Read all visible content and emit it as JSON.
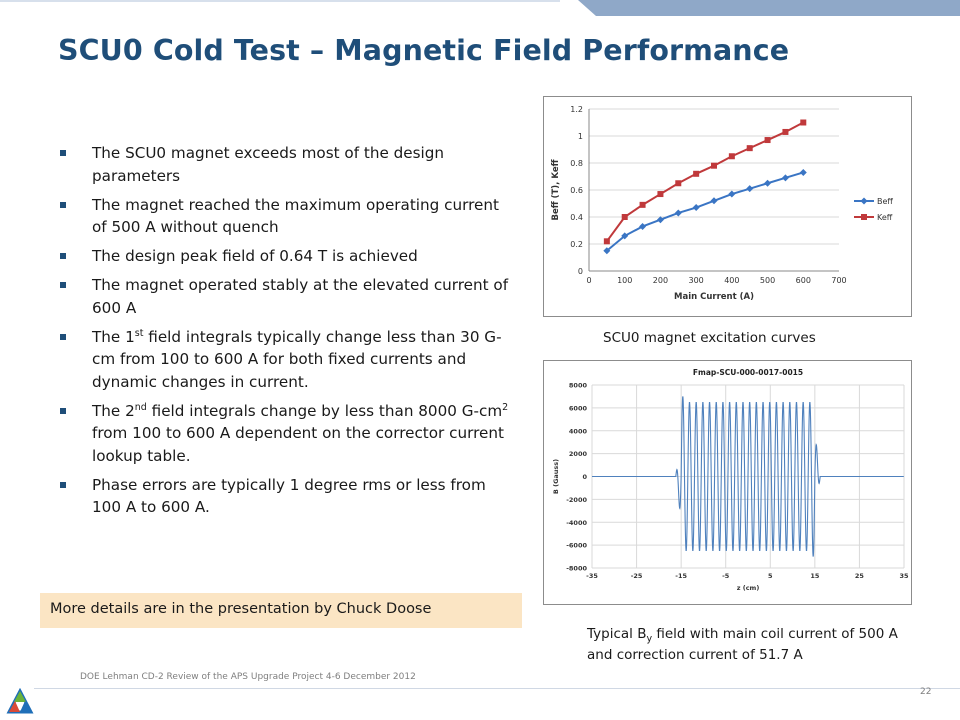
{
  "slide": {
    "title": "SCU0 Cold Test – Magnetic Field Performance",
    "bullets": [
      {
        "text": "The SCU0 magnet exceeds most of the design parameters"
      },
      {
        "text": "The magnet reached the maximum operating current of 500 A without quench"
      },
      {
        "text": "The design peak field of 0.64 T is achieved"
      },
      {
        "text": "The magnet operated stably at the elevated current of 600 A"
      },
      {
        "pre": "The 1",
        "sup": "st",
        "post": " field integrals typically change less than 30 G-cm from 100 to 600 A for both fixed currents and dynamic changes in current."
      },
      {
        "pre": "The 2",
        "sup": "nd",
        "mid": " field integrals change by less than 8000 G-cm",
        "sup2": "2",
        "post": " from 100 to 600 A dependent on the corrector current lookup table."
      },
      {
        "text": "Phase errors are typically 1 degree rms or less from 100 A to 600 A."
      }
    ],
    "more_details": "More details are in the presentation by Chuck Doose",
    "caption_excitation": "SCU0 magnet excitation curves",
    "caption_field": {
      "pre": "Typical B",
      "sub": "y",
      "post": " field with main coil current of 500 A and correction current of 51.7 A"
    },
    "footer": "DOE Lehman CD-2 Review of the APS Upgrade Project   4-6 December  2012",
    "page_number": "22",
    "colors": {
      "title": "#1f4e79",
      "band": "#8fa8c8",
      "box": "#fbe5c4",
      "beff": "#3a75c4",
      "keff": "#c0393b",
      "fmap": "#4f81bd"
    }
  },
  "chart_data": [
    {
      "type": "line",
      "xlabel": "Main Current (A)",
      "ylabel": "Beff (T), Keff",
      "xlim": [
        0,
        700
      ],
      "ylim": [
        0,
        1.2
      ],
      "xticks": [
        "0",
        "100",
        "200",
        "300",
        "400",
        "500",
        "600",
        "700"
      ],
      "yticks": [
        "0",
        "0.2",
        "0.4",
        "0.6",
        "0.8",
        "1",
        "1.2"
      ],
      "grid": true,
      "legend": "right",
      "x": [
        50,
        100,
        150,
        200,
        250,
        300,
        350,
        400,
        450,
        500,
        550,
        600
      ],
      "series": [
        {
          "name": "Beff",
          "marker": "diamond",
          "values": [
            0.15,
            0.26,
            0.33,
            0.38,
            0.43,
            0.47,
            0.52,
            0.57,
            0.61,
            0.65,
            0.69,
            0.73
          ]
        },
        {
          "name": "Keff",
          "marker": "square",
          "values": [
            0.22,
            0.4,
            0.49,
            0.57,
            0.65,
            0.72,
            0.78,
            0.85,
            0.91,
            0.97,
            1.03,
            1.1
          ]
        }
      ]
    },
    {
      "type": "line",
      "title": "Fmap-SCU-000-0017-0015",
      "xlabel": "z (cm)",
      "ylabel": "B (Gauss)",
      "xlim": [
        -35,
        35
      ],
      "ylim": [
        -8000,
        8000
      ],
      "xticks": [
        "-35",
        "-25",
        "-15",
        "-5",
        "5",
        "15",
        "25",
        "35"
      ],
      "yticks": [
        "-8000",
        "-6000",
        "-4000",
        "-2000",
        "0",
        "2000",
        "4000",
        "6000",
        "8000"
      ],
      "grid": true,
      "description_values": {
        "z_start": -15,
        "z_end": 15,
        "period_cm": 1.5,
        "amplitude_gauss": 6500,
        "end_peak_pos": 7000,
        "end_peak_neg": -7000
      }
    }
  ]
}
